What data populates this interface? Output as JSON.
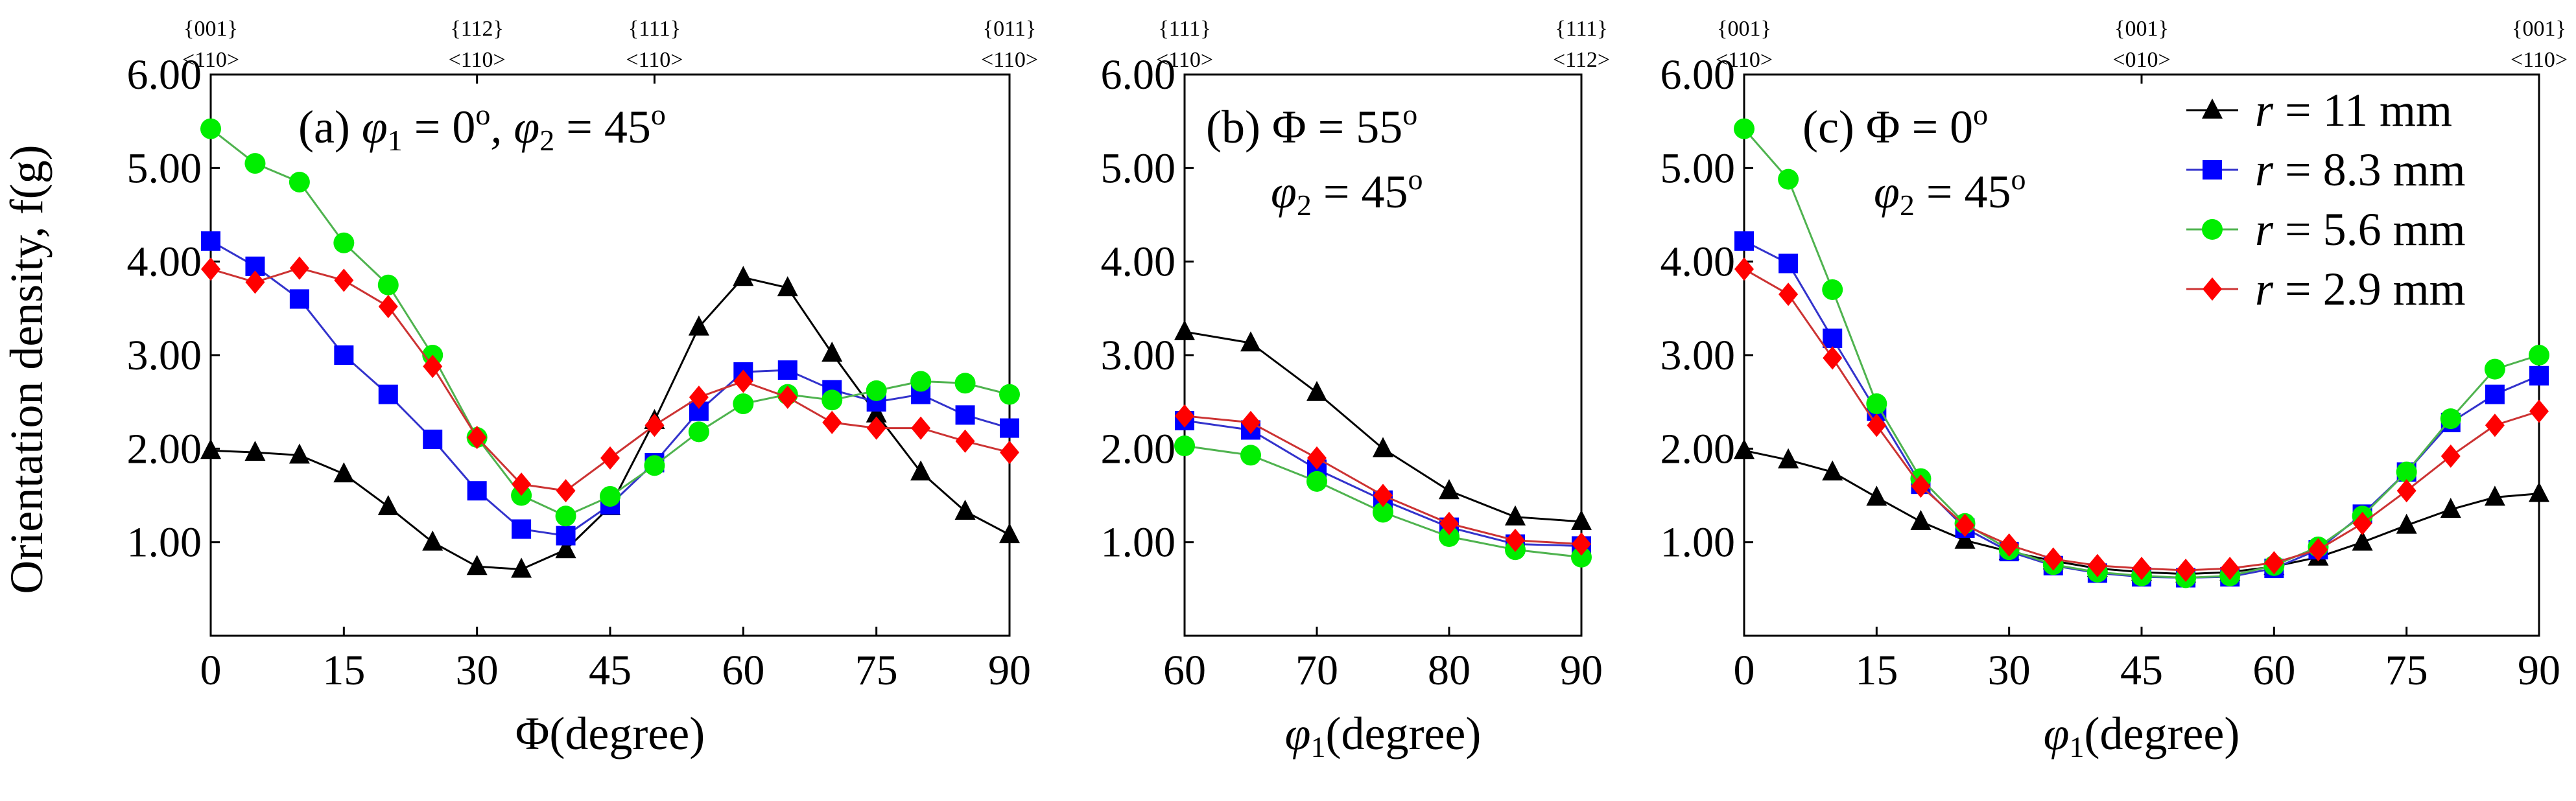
{
  "figure": {
    "ylabel": "Orientation density, f(g)",
    "y_ticks": [
      "6.00",
      "5.00",
      "4.00",
      "3.00",
      "2.00",
      "1.00"
    ],
    "legend": [
      {
        "symbol": "r",
        "text": " = 11 mm"
      },
      {
        "symbol": "r",
        "text": " = 8.3 mm"
      },
      {
        "symbol": "r",
        "text": " = 5.6 mm"
      },
      {
        "symbol": "r",
        "text": " = 2.9 mm"
      }
    ]
  },
  "colors": {
    "r11": "#000000",
    "r83": "#0000ff",
    "r56": "#00ee00",
    "r29": "#ff0000",
    "r11_line": "#000000",
    "r83_line": "#3333cc",
    "r56_line": "#4fb34f",
    "r29_line": "#cc3333"
  },
  "chart_data": [
    {
      "type": "line",
      "panel": "a",
      "annotation": {
        "prefix": "(a) ",
        "v1": "φ",
        "s1": "1",
        "t1": " = 0",
        "sup1": "o",
        "sep": ", ",
        "v2": "φ",
        "s2": "2",
        "t2": " = 45",
        "sup2": "o"
      },
      "xlabel": "Φ(degree)",
      "xlabel_parts": {
        "var": "",
        "sub": "",
        "text": "Φ(degree)"
      },
      "xlim": [
        0,
        90
      ],
      "ylim": [
        0,
        6
      ],
      "x_ticks": [
        "0",
        "15",
        "30",
        "45",
        "60",
        "75",
        "90"
      ],
      "top_labels": [
        {
          "x": 0,
          "plane": "{001}",
          "dir": "<110>"
        },
        {
          "x": 30,
          "plane": "{112}",
          "dir": "<110>"
        },
        {
          "x": 50,
          "plane": "{111}",
          "dir": "<110>"
        },
        {
          "x": 90,
          "plane": "{011}",
          "dir": "<110>"
        }
      ],
      "x": [
        0,
        5,
        10,
        15,
        20,
        25,
        30,
        35,
        40,
        45,
        50,
        55,
        60,
        65,
        70,
        75,
        80,
        85,
        90
      ],
      "series": [
        {
          "name": "r = 11 mm",
          "key": "r11",
          "marker": "triangle",
          "values": [
            1.98,
            1.96,
            1.93,
            1.73,
            1.38,
            1.0,
            0.74,
            0.71,
            0.92,
            1.38,
            2.3,
            3.3,
            3.83,
            3.72,
            3.02,
            2.37,
            1.75,
            1.33,
            1.08
          ]
        },
        {
          "name": "r = 8.3 mm",
          "key": "r83",
          "marker": "square",
          "values": [
            4.22,
            3.95,
            3.6,
            3.0,
            2.58,
            2.1,
            1.55,
            1.14,
            1.07,
            1.4,
            1.85,
            2.4,
            2.82,
            2.84,
            2.63,
            2.5,
            2.58,
            2.36,
            2.22
          ]
        },
        {
          "name": "r = 5.6 mm",
          "key": "r56",
          "marker": "circle",
          "values": [
            5.42,
            5.05,
            4.85,
            4.2,
            3.75,
            3.0,
            2.12,
            1.5,
            1.28,
            1.49,
            1.82,
            2.18,
            2.48,
            2.58,
            2.52,
            2.62,
            2.72,
            2.7,
            2.58
          ]
        },
        {
          "name": "r = 2.9 mm",
          "key": "r29",
          "marker": "diamond",
          "values": [
            3.92,
            3.78,
            3.93,
            3.8,
            3.52,
            2.88,
            2.12,
            1.62,
            1.55,
            1.9,
            2.25,
            2.55,
            2.72,
            2.55,
            2.28,
            2.22,
            2.22,
            2.08,
            1.96
          ]
        }
      ]
    },
    {
      "type": "line",
      "panel": "b",
      "annotation": {
        "prefix": "(b) ",
        "v1": "Φ",
        "s1": "",
        "t1": " = 55",
        "sup1": "o",
        "sep": "",
        "v2": "φ",
        "s2": "2",
        "t2": " = 45",
        "sup2": "o"
      },
      "xlabel": "φ1(degree)",
      "xlabel_parts": {
        "var": "φ",
        "sub": "1",
        "text": "(degree)"
      },
      "xlim": [
        60,
        90
      ],
      "ylim": [
        0,
        6
      ],
      "x_ticks": [
        "60",
        "70",
        "80",
        "90"
      ],
      "top_labels": [
        {
          "x": 60,
          "plane": "{111}",
          "dir": "<110>"
        },
        {
          "x": 90,
          "plane": "{111}",
          "dir": "<112>"
        }
      ],
      "x": [
        60,
        65,
        70,
        75,
        80,
        85,
        90
      ],
      "series": [
        {
          "name": "r = 11 mm",
          "key": "r11",
          "marker": "triangle",
          "values": [
            3.25,
            3.13,
            2.6,
            2.0,
            1.55,
            1.27,
            1.22
          ]
        },
        {
          "name": "r = 8.3 mm",
          "key": "r83",
          "marker": "square",
          "values": [
            2.3,
            2.2,
            1.78,
            1.45,
            1.16,
            0.98,
            0.96
          ]
        },
        {
          "name": "r = 5.6 mm",
          "key": "r56",
          "marker": "circle",
          "values": [
            2.03,
            1.93,
            1.65,
            1.32,
            1.06,
            0.92,
            0.84
          ]
        },
        {
          "name": "r = 2.9 mm",
          "key": "r29",
          "marker": "diamond",
          "values": [
            2.35,
            2.28,
            1.9,
            1.5,
            1.2,
            1.02,
            0.98
          ]
        }
      ]
    },
    {
      "type": "line",
      "panel": "c",
      "annotation": {
        "prefix": "(c) ",
        "v1": "Φ",
        "s1": "",
        "t1": " = 0",
        "sup1": "o",
        "sep": "",
        "v2": "φ",
        "s2": "2",
        "t2": " = 45",
        "sup2": "o"
      },
      "xlabel": "φ1(degree)",
      "xlabel_parts": {
        "var": "φ",
        "sub": "1",
        "text": "(degree)"
      },
      "xlim": [
        0,
        90
      ],
      "ylim": [
        0,
        6
      ],
      "x_ticks": [
        "0",
        "15",
        "30",
        "45",
        "60",
        "75",
        "90"
      ],
      "top_labels": [
        {
          "x": 0,
          "plane": "{001}",
          "dir": "<110>"
        },
        {
          "x": 45,
          "plane": "{001}",
          "dir": "<010>"
        },
        {
          "x": 90,
          "plane": "{001}",
          "dir": "<110>"
        }
      ],
      "legend_position": "top-right",
      "x": [
        0,
        5,
        10,
        15,
        20,
        25,
        30,
        35,
        40,
        45,
        50,
        55,
        60,
        65,
        70,
        75,
        80,
        85,
        90
      ],
      "series": [
        {
          "name": "r = 11 mm",
          "key": "r11",
          "marker": "triangle",
          "values": [
            1.98,
            1.88,
            1.75,
            1.48,
            1.22,
            1.02,
            0.9,
            0.8,
            0.72,
            0.68,
            0.66,
            0.68,
            0.74,
            0.84,
            1.0,
            1.18,
            1.35,
            1.48,
            1.52
          ]
        },
        {
          "name": "r = 8.3 mm",
          "key": "r83",
          "marker": "square",
          "values": [
            4.22,
            3.98,
            3.18,
            2.4,
            1.62,
            1.15,
            0.9,
            0.75,
            0.67,
            0.63,
            0.62,
            0.63,
            0.72,
            0.92,
            1.3,
            1.75,
            2.28,
            2.58,
            2.78
          ]
        },
        {
          "name": "r = 5.6 mm",
          "key": "r56",
          "marker": "circle",
          "values": [
            5.42,
            4.88,
            3.7,
            2.48,
            1.68,
            1.2,
            0.92,
            0.76,
            0.68,
            0.64,
            0.62,
            0.64,
            0.75,
            0.95,
            1.28,
            1.75,
            2.32,
            2.85,
            3.0
          ]
        },
        {
          "name": "r = 2.9 mm",
          "key": "r29",
          "marker": "diamond",
          "values": [
            3.92,
            3.65,
            2.97,
            2.25,
            1.6,
            1.18,
            0.97,
            0.82,
            0.75,
            0.72,
            0.7,
            0.72,
            0.78,
            0.92,
            1.2,
            1.55,
            1.92,
            2.25,
            2.4
          ]
        }
      ]
    }
  ]
}
